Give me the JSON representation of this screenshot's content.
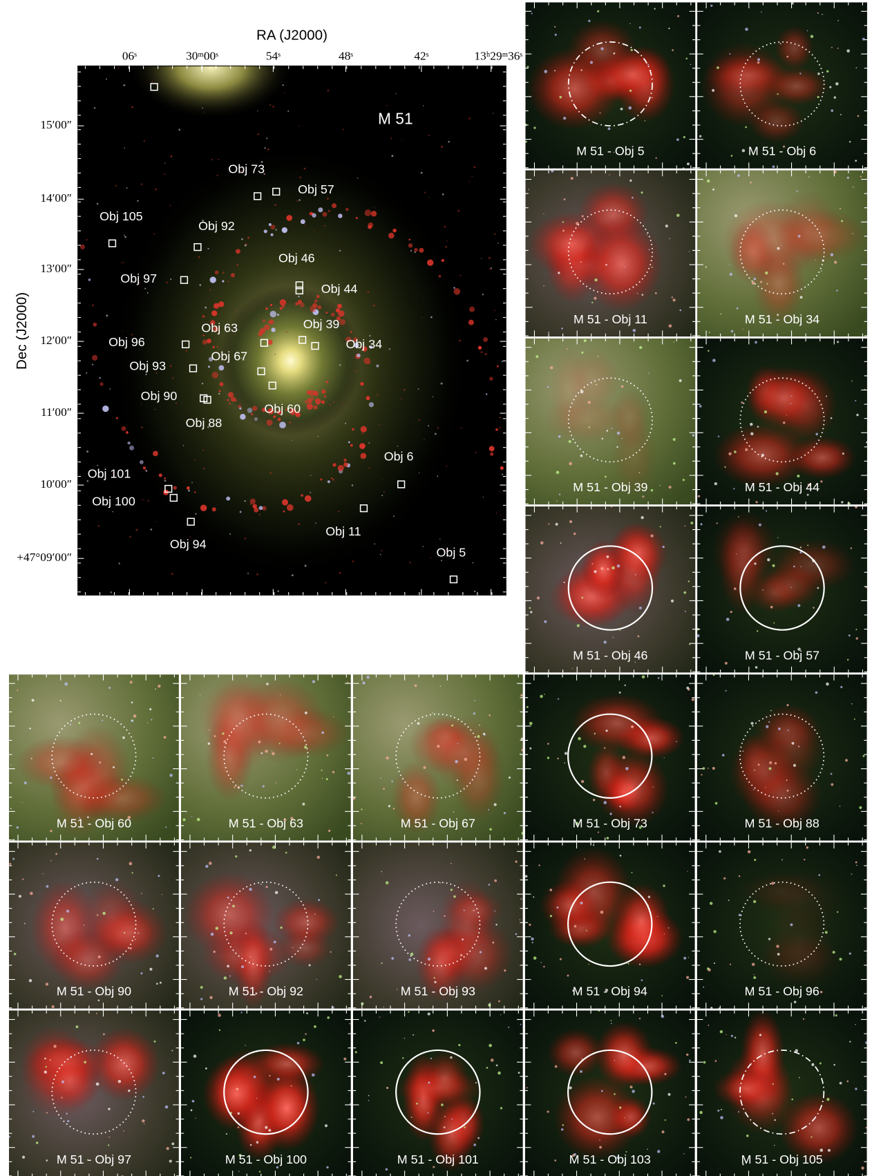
{
  "main_image": {
    "x_label": "RA (J2000)",
    "y_label": "Dec (J2000)",
    "x_ticks": [
      "06ˢ",
      "30ᵐ00ˢ",
      "54ˢ",
      "48ˢ",
      "42ˢ",
      "13ʰ29ᵐ36ˢ"
    ],
    "y_ticks": [
      "15′00″",
      "14′00″",
      "13′00″",
      "12′00″",
      "11′00″",
      "10′00″",
      "+47°09′00″"
    ],
    "galaxy": "M 51",
    "objects": [
      "Obj 73",
      "Obj 57",
      "Obj 105",
      "Obj 92",
      "Obj 46",
      "Obj 97",
      "Obj 44",
      "Obj 63",
      "Obj 39",
      "Obj 96",
      "Obj 67",
      "Obj 34",
      "Obj 93",
      "Obj 90",
      "Obj 60",
      "Obj 88",
      "Obj 6",
      "Obj 101",
      "Obj 100",
      "Obj 11",
      "Obj 94",
      "Obj 5"
    ]
  },
  "panels": [
    "M 51 - Obj 5",
    "M 51 - Obj 6",
    "M 51 - Obj 11",
    "M 51 - Obj 34",
    "M 51 - Obj 39",
    "M 51 - Obj 44",
    "M 51 - Obj 46",
    "M 51 - Obj 57",
    "M 51 - Obj 60",
    "M 51 - Obj 63",
    "M 51 - Obj 67",
    "M 51 - Obj 73",
    "M 51 - Obj 88",
    "M 51 - Obj 90",
    "M 51 - Obj 92",
    "M 51 - Obj 93",
    "M 51 - Obj 94",
    "M 51 - Obj 96",
    "M 51 - Obj 97",
    "M 51 - Obj 100",
    "M 51 - Obj 101",
    "M 51 - Obj 103",
    "M 51 - Obj 105"
  ]
}
